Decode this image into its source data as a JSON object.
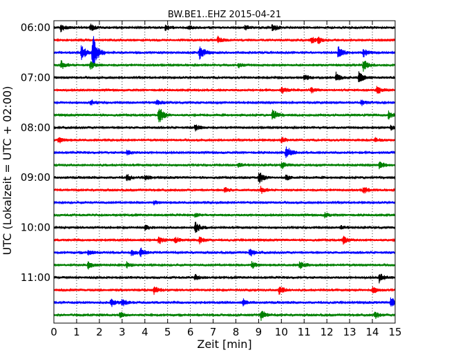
{
  "chart_data": {
    "type": "line",
    "subtype": "dayplot-seismogram",
    "title": "BW.BE1..EHZ 2015-04-21",
    "xlabel": "Zeit  [min]",
    "ylabel": "UTC (Lokalzeit = UTC + 02:00)",
    "xlim": [
      0,
      15
    ],
    "x_ticks": [
      "0",
      "1",
      "2",
      "3",
      "4",
      "5",
      "6",
      "7",
      "8",
      "9",
      "10",
      "11",
      "12",
      "13",
      "14",
      "15"
    ],
    "y_ticks": [
      "06:00",
      "07:00",
      "08:00",
      "09:00",
      "10:00",
      "11:00"
    ],
    "grid": "vertical-dotted",
    "trace_minutes_per_line": 15,
    "trace_colors": [
      "#000000",
      "#ff0000",
      "#0000ff",
      "#008000"
    ],
    "traces": [
      {
        "start": "06:00",
        "events": [
          {
            "t": 0.3,
            "amp": 0.35
          },
          {
            "t": 1.6,
            "amp": 0.3
          },
          {
            "t": 4.9,
            "amp": 0.25
          },
          {
            "t": 5.9,
            "amp": 0.25
          },
          {
            "t": 8.4,
            "amp": 0.2
          },
          {
            "t": 9.6,
            "amp": 0.35
          }
        ]
      },
      {
        "start": "06:15",
        "events": [
          {
            "t": 7.2,
            "amp": 0.35
          },
          {
            "t": 11.3,
            "amp": 0.3
          },
          {
            "t": 11.6,
            "amp": 0.3
          }
        ]
      },
      {
        "start": "06:30",
        "events": [
          {
            "t": 1.2,
            "amp": 0.8
          },
          {
            "t": 1.7,
            "amp": 1.9
          },
          {
            "t": 6.4,
            "amp": 0.8
          },
          {
            "t": 12.5,
            "amp": 0.6
          },
          {
            "t": 13.6,
            "amp": 0.35
          }
        ]
      },
      {
        "start": "06:45",
        "events": [
          {
            "t": 0.3,
            "amp": 0.4
          },
          {
            "t": 1.6,
            "amp": 0.35
          },
          {
            "t": 13.6,
            "amp": 0.55
          },
          {
            "t": 8.1,
            "amp": 0.2
          }
        ]
      },
      {
        "start": "07:00",
        "events": [
          {
            "t": 11.0,
            "amp": 0.3
          },
          {
            "t": 12.4,
            "amp": 0.45
          },
          {
            "t": 13.4,
            "amp": 0.55
          }
        ]
      },
      {
        "start": "07:15",
        "events": [
          {
            "t": 10.0,
            "amp": 0.3
          },
          {
            "t": 11.3,
            "amp": 0.25
          },
          {
            "t": 14.2,
            "amp": 0.35
          }
        ]
      },
      {
        "start": "07:30",
        "events": [
          {
            "t": 1.6,
            "amp": 0.25
          },
          {
            "t": 4.5,
            "amp": 0.25
          },
          {
            "t": 13.5,
            "amp": 0.25
          }
        ]
      },
      {
        "start": "07:45",
        "events": [
          {
            "t": 4.6,
            "amp": 0.9
          },
          {
            "t": 9.6,
            "amp": 0.65
          },
          {
            "t": 14.7,
            "amp": 0.35
          }
        ]
      },
      {
        "start": "08:00",
        "events": [
          {
            "t": 6.2,
            "amp": 0.3
          },
          {
            "t": 14.8,
            "amp": 0.2
          }
        ]
      },
      {
        "start": "08:15",
        "events": [
          {
            "t": 0.2,
            "amp": 0.3
          },
          {
            "t": 10.0,
            "amp": 0.25
          },
          {
            "t": 14.1,
            "amp": 0.2
          }
        ]
      },
      {
        "start": "08:30",
        "events": [
          {
            "t": 10.2,
            "amp": 0.7
          },
          {
            "t": 3.2,
            "amp": 0.2
          }
        ]
      },
      {
        "start": "08:45",
        "events": [
          {
            "t": 10.0,
            "amp": 0.35
          },
          {
            "t": 14.3,
            "amp": 0.4
          },
          {
            "t": 8.1,
            "amp": 0.2
          }
        ]
      },
      {
        "start": "09:00",
        "events": [
          {
            "t": 3.2,
            "amp": 0.3
          },
          {
            "t": 4.0,
            "amp": 0.25
          },
          {
            "t": 9.0,
            "amp": 0.6
          },
          {
            "t": 10.2,
            "amp": 0.25
          }
        ]
      },
      {
        "start": "09:15",
        "events": [
          {
            "t": 7.5,
            "amp": 0.25
          },
          {
            "t": 9.1,
            "amp": 0.3
          },
          {
            "t": 13.6,
            "amp": 0.35
          }
        ]
      },
      {
        "start": "09:30",
        "events": [
          {
            "t": 4.4,
            "amp": 0.15
          }
        ]
      },
      {
        "start": "09:45",
        "events": [
          {
            "t": 6.2,
            "amp": 0.2
          },
          {
            "t": 11.9,
            "amp": 0.2
          }
        ]
      },
      {
        "start": "10:00",
        "events": [
          {
            "t": 6.2,
            "amp": 0.55
          },
          {
            "t": 4.0,
            "amp": 0.2
          },
          {
            "t": 12.6,
            "amp": 0.15
          }
        ]
      },
      {
        "start": "10:15",
        "events": [
          {
            "t": 4.6,
            "amp": 0.35
          },
          {
            "t": 5.3,
            "amp": 0.3
          },
          {
            "t": 6.4,
            "amp": 0.3
          },
          {
            "t": 12.7,
            "amp": 0.35
          }
        ]
      },
      {
        "start": "10:30",
        "events": [
          {
            "t": 3.4,
            "amp": 0.3
          },
          {
            "t": 3.8,
            "amp": 0.35
          },
          {
            "t": 8.6,
            "amp": 0.4
          },
          {
            "t": 1.5,
            "amp": 0.25
          }
        ]
      },
      {
        "start": "10:45",
        "events": [
          {
            "t": 1.5,
            "amp": 0.3
          },
          {
            "t": 3.2,
            "amp": 0.25
          },
          {
            "t": 8.7,
            "amp": 0.3
          },
          {
            "t": 10.8,
            "amp": 0.35
          }
        ]
      },
      {
        "start": "11:00",
        "events": [
          {
            "t": 6.2,
            "amp": 0.25
          },
          {
            "t": 14.3,
            "amp": 0.5
          }
        ]
      },
      {
        "start": "11:15",
        "events": [
          {
            "t": 4.4,
            "amp": 0.35
          },
          {
            "t": 9.9,
            "amp": 0.45
          },
          {
            "t": 14.0,
            "amp": 0.3
          }
        ]
      },
      {
        "start": "11:30",
        "events": [
          {
            "t": 2.5,
            "amp": 0.4
          },
          {
            "t": 3.0,
            "amp": 0.3
          },
          {
            "t": 8.3,
            "amp": 0.35
          },
          {
            "t": 14.8,
            "amp": 0.5
          }
        ]
      },
      {
        "start": "11:45",
        "events": [
          {
            "t": 2.9,
            "amp": 0.25
          },
          {
            "t": 9.1,
            "amp": 0.45
          },
          {
            "t": 14.1,
            "amp": 0.35
          }
        ]
      }
    ]
  }
}
